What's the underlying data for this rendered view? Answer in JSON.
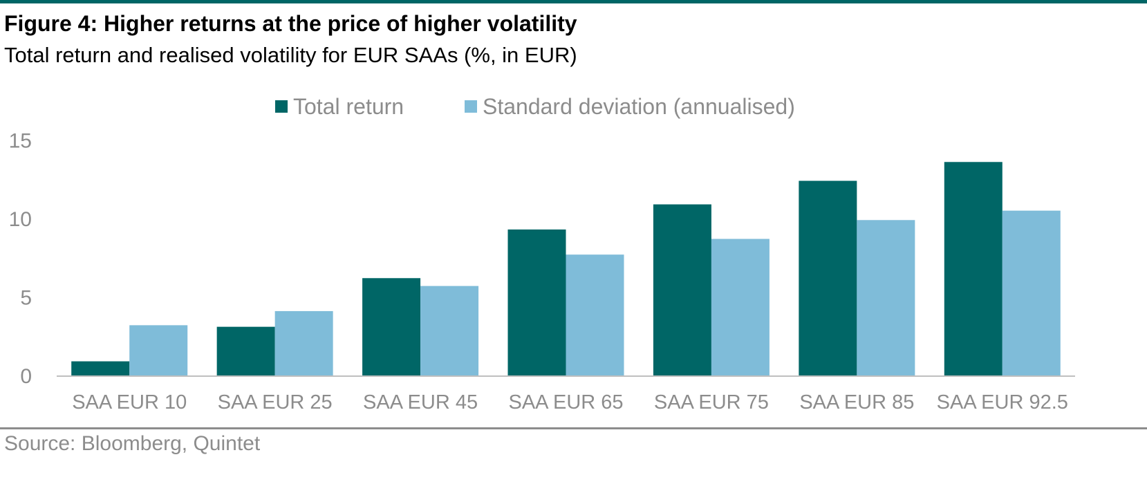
{
  "header": {
    "title": "Figure 4: Higher returns at the price of higher volatility",
    "subtitle": "Total return and realised volatility for EUR SAAs (%, in EUR)"
  },
  "footer": {
    "source": "Source: Bloomberg, Quintet"
  },
  "colors": {
    "accent": "#006666",
    "total_return": "#006666",
    "std_dev": "#7fbcd9",
    "text_muted": "#8c8c8c",
    "axis": "#bfbfbf"
  },
  "chart_data": {
    "type": "bar",
    "categories": [
      "SAA EUR 10",
      "SAA EUR 25",
      "SAA EUR 45",
      "SAA EUR 65",
      "SAA EUR 75",
      "SAA EUR 85",
      "SAA EUR 92.5"
    ],
    "series": [
      {
        "name": "Total return",
        "values": [
          0.9,
          3.1,
          6.2,
          9.3,
          10.9,
          12.4,
          13.6
        ],
        "color": "#006666"
      },
      {
        "name": "Standard deviation (annualised)",
        "values": [
          3.2,
          4.1,
          5.7,
          7.7,
          8.7,
          9.9,
          10.5
        ],
        "color": "#7fbcd9"
      }
    ],
    "yticks": [
      "0",
      "5",
      "10",
      "15"
    ],
    "ylim": [
      0,
      15
    ],
    "grid": false,
    "legend_position": "top-center"
  }
}
